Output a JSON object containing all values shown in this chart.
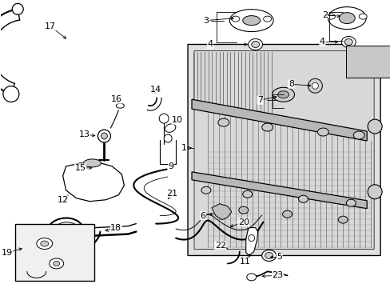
{
  "bg_color": "#ffffff",
  "line_color": "#000000",
  "fig_width": 4.89,
  "fig_height": 3.6,
  "dpi": 100,
  "rad_fill": "#e0e0e0",
  "rad_inner_fill": "#d0d0d0",
  "inset_fill": "#ebebeb"
}
